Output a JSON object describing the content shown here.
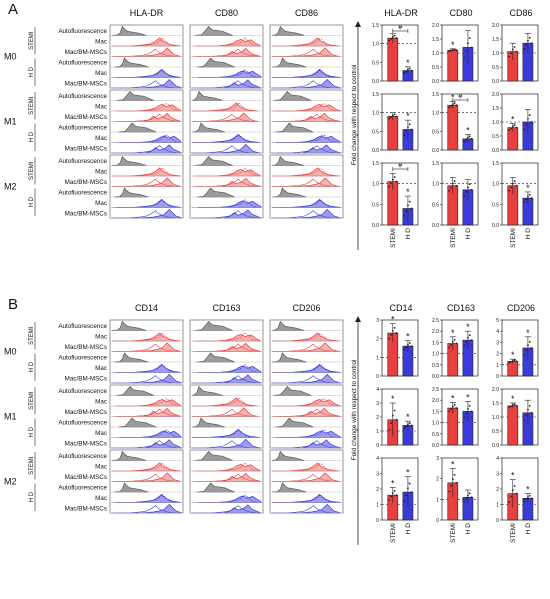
{
  "colors": {
    "stemi": "#e8403f",
    "stemi_fill": "#f3a3a2",
    "hd": "#3b3bdc",
    "hd_fill": "#8c8ce8",
    "auto": "#555555",
    "auto_fill": "#8a8a8a"
  },
  "panel_labels": {
    "a": "A",
    "b": "B"
  },
  "rows": {
    "conditions": [
      "M0",
      "M1",
      "M2"
    ],
    "groups": [
      "STEMI",
      "H D"
    ],
    "tracks": [
      "Autofluorescence",
      "Mac",
      "Mac/BM-MSCs",
      "Autofluorescence",
      "Mac",
      "Mac/BM-MSCs"
    ]
  },
  "y_axis_label": "Fold change with respect to control",
  "x_labels": [
    "STEMI",
    "H D"
  ],
  "significance": {
    "star": "*",
    "hash": "#"
  },
  "panel_a": {
    "markers": [
      "HLA-DR",
      "CD80",
      "CD86"
    ],
    "charts": [
      {
        "marker": "HLA-DR",
        "cond": "M0",
        "ymax": 1.5,
        "ticks": [
          "0.0",
          "0.5",
          "1.0",
          "1.5"
        ],
        "values": [
          1.15,
          0.28
        ],
        "errors": [
          0.12,
          0.1
        ],
        "stars": [
          false,
          true
        ],
        "hash": true
      },
      {
        "marker": "CD80",
        "cond": "M0",
        "ymax": 2.0,
        "ticks": [
          "0.0",
          "0.5",
          "1.0",
          "1.5",
          "2.0"
        ],
        "values": [
          1.1,
          1.2
        ],
        "errors": [
          0.05,
          0.6
        ],
        "stars": [
          true,
          false
        ],
        "hash": false
      },
      {
        "marker": "CD86",
        "cond": "M0",
        "ymax": 2.0,
        "ticks": [
          "0.0",
          "0.5",
          "1.0",
          "1.5",
          "2.0"
        ],
        "values": [
          1.05,
          1.35
        ],
        "errors": [
          0.3,
          0.35
        ],
        "stars": [
          false,
          false
        ],
        "hash": false
      },
      {
        "marker": "HLA-DR",
        "cond": "M1",
        "ymax": 1.5,
        "ticks": [
          "0.0",
          "0.5",
          "1.0",
          "1.5"
        ],
        "values": [
          0.9,
          0.55
        ],
        "errors": [
          0.1,
          0.25
        ],
        "stars": [
          false,
          true
        ],
        "hash": false
      },
      {
        "marker": "CD80",
        "cond": "M1",
        "ymax": 1.5,
        "ticks": [
          "0.0",
          "0.5",
          "1.0",
          "1.5"
        ],
        "values": [
          1.2,
          0.3
        ],
        "errors": [
          0.1,
          0.12
        ],
        "stars": [
          true,
          true
        ],
        "hash": true
      },
      {
        "marker": "CD86",
        "cond": "M1",
        "ymax": 2.0,
        "ticks": [
          "0.0",
          "0.5",
          "1.0",
          "1.5",
          "2.0"
        ],
        "values": [
          0.8,
          1.0
        ],
        "errors": [
          0.15,
          0.45
        ],
        "stars": [
          true,
          false
        ],
        "hash": false
      },
      {
        "marker": "HLA-DR",
        "cond": "M2",
        "ymax": 1.5,
        "ticks": [
          "0.0",
          "0.5",
          "1.0",
          "1.5"
        ],
        "values": [
          1.05,
          0.4
        ],
        "errors": [
          0.2,
          0.3
        ],
        "stars": [
          false,
          true
        ],
        "hash": true
      },
      {
        "marker": "CD80",
        "cond": "M2",
        "ymax": 1.5,
        "ticks": [
          "0.0",
          "0.5",
          "1.0",
          "1.5"
        ],
        "values": [
          0.95,
          0.85
        ],
        "errors": [
          0.2,
          0.25
        ],
        "stars": [
          false,
          false
        ],
        "hash": false
      },
      {
        "marker": "CD86",
        "cond": "M2",
        "ymax": 1.5,
        "ticks": [
          "0.0",
          "0.5",
          "1.0",
          "1.5"
        ],
        "values": [
          0.95,
          0.65
        ],
        "errors": [
          0.2,
          0.15
        ],
        "stars": [
          false,
          true
        ],
        "hash": false
      }
    ]
  },
  "panel_b": {
    "markers": [
      "CD14",
      "CD163",
      "CD206"
    ],
    "charts": [
      {
        "marker": "CD14",
        "cond": "M0",
        "ymax": 3,
        "ticks": [
          "0",
          "1",
          "2",
          "3"
        ],
        "values": [
          2.3,
          1.6
        ],
        "errors": [
          0.5,
          0.3
        ],
        "stars": [
          true,
          true
        ],
        "hash": false
      },
      {
        "marker": "CD163",
        "cond": "M0",
        "ymax": 2.5,
        "ticks": [
          "0.0",
          "0.5",
          "1.0",
          "1.5",
          "2.0",
          "2.5"
        ],
        "values": [
          1.45,
          1.6
        ],
        "errors": [
          0.3,
          0.4
        ],
        "stars": [
          true,
          true
        ],
        "hash": false
      },
      {
        "marker": "CD206",
        "cond": "M0",
        "ymax": 5,
        "ticks": [
          "0",
          "1",
          "2",
          "3",
          "4",
          "5"
        ],
        "values": [
          1.3,
          2.5
        ],
        "errors": [
          0.2,
          1.0
        ],
        "stars": [
          true,
          true
        ],
        "hash": false
      },
      {
        "marker": "CD14",
        "cond": "M1",
        "ymax": 4,
        "ticks": [
          "0",
          "1",
          "2",
          "3",
          "4"
        ],
        "values": [
          1.8,
          1.4
        ],
        "errors": [
          1.2,
          0.3
        ],
        "stars": [
          true,
          true
        ],
        "hash": false
      },
      {
        "marker": "CD163",
        "cond": "M1",
        "ymax": 2.5,
        "ticks": [
          "0.0",
          "0.5",
          "1.0",
          "1.5",
          "2.0",
          "2.5"
        ],
        "values": [
          1.65,
          1.5
        ],
        "errors": [
          0.25,
          0.45
        ],
        "stars": [
          true,
          true
        ],
        "hash": false
      },
      {
        "marker": "CD206",
        "cond": "M1",
        "ymax": 2.0,
        "ticks": [
          "0.0",
          "0.5",
          "1.0",
          "1.5",
          "2.0"
        ],
        "values": [
          1.4,
          1.15
        ],
        "errors": [
          0.1,
          0.45
        ],
        "stars": [
          true,
          false
        ],
        "hash": false
      },
      {
        "marker": "CD14",
        "cond": "M2",
        "ymax": 4,
        "ticks": [
          "0",
          "1",
          "2",
          "3",
          "4"
        ],
        "values": [
          1.6,
          1.8
        ],
        "errors": [
          0.5,
          1.0
        ],
        "stars": [
          true,
          true
        ],
        "hash": false
      },
      {
        "marker": "CD163",
        "cond": "M2",
        "ymax": 3,
        "ticks": [
          "0",
          "1",
          "2",
          "3"
        ],
        "values": [
          1.8,
          1.1
        ],
        "errors": [
          0.7,
          0.35
        ],
        "stars": [
          true,
          false
        ],
        "hash": false
      },
      {
        "marker": "CD206",
        "cond": "M2",
        "ymax": 4,
        "ticks": [
          "0",
          "1",
          "2",
          "3",
          "4"
        ],
        "values": [
          1.7,
          1.4
        ],
        "errors": [
          0.9,
          0.3
        ],
        "stars": [
          true,
          true
        ],
        "hash": false
      }
    ]
  }
}
